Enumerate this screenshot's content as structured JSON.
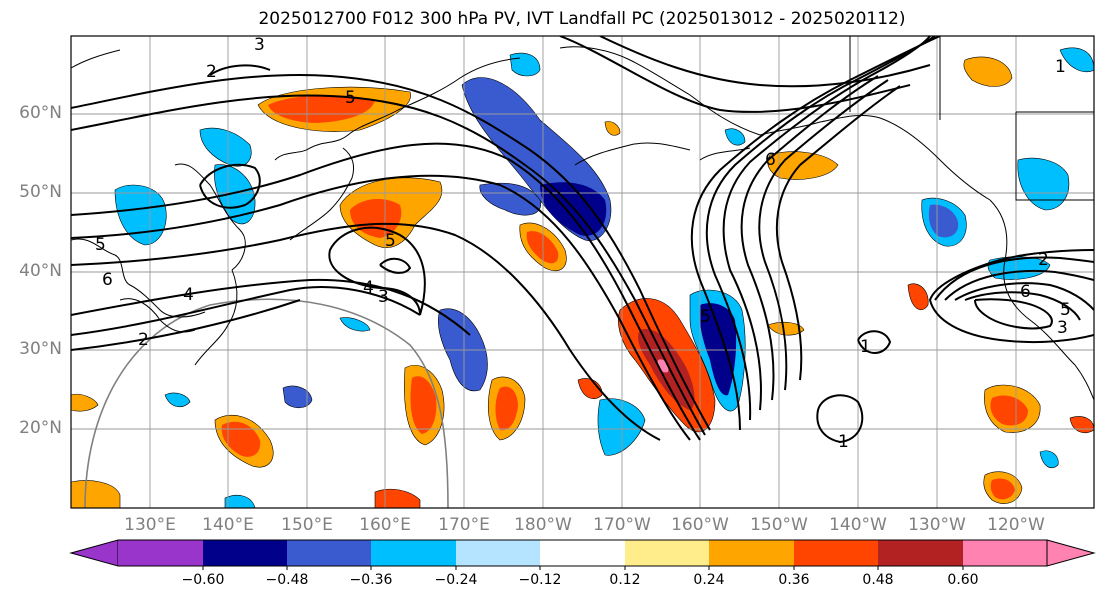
{
  "title": "2025012700 F012 300 hPa PV, IVT Landfall PC (2025013012 - 2025020112)",
  "lat_labels": [
    "60°N",
    "50°N",
    "40°N",
    "30°N",
    "20°N"
  ],
  "lon_labels": [
    "130°E",
    "140°E",
    "150°E",
    "160°E",
    "170°E",
    "180°W",
    "170°W",
    "160°W",
    "150°W",
    "140°W",
    "130°W",
    "120°W"
  ],
  "colorbar": {
    "ticks": [
      "−0.60",
      "−0.48",
      "−0.36",
      "−0.24",
      "−0.12",
      "0.12",
      "0.24",
      "0.36",
      "0.48",
      "0.60"
    ],
    "colors": [
      "#9a35cc",
      "#00008b",
      "#3a5bd0",
      "#00bfff",
      "#b4e4ff",
      "#ffffff",
      "#ffec8b",
      "#ffa500",
      "#ff4500",
      "#b22222",
      "#ff82b0"
    ]
  },
  "contour_labels": [
    "3",
    "2",
    "5",
    "5",
    "6",
    "4",
    "3",
    "4",
    "5",
    "2",
    "5",
    "6",
    "1",
    "1",
    "2",
    "6",
    "5",
    "3",
    "1"
  ]
}
